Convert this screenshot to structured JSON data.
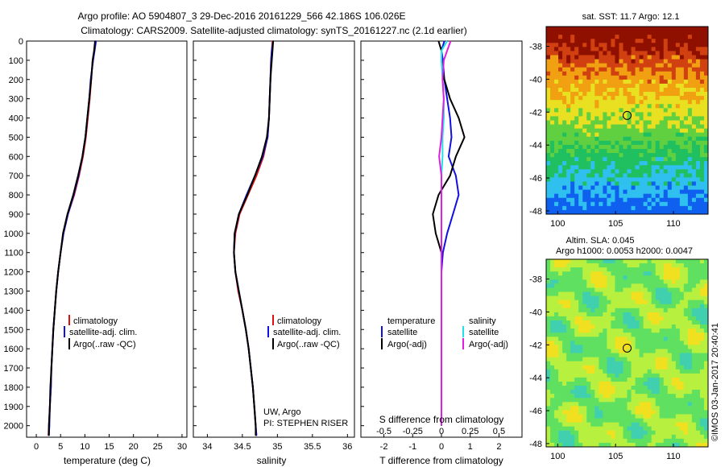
{
  "header": {
    "line1": "Argo profile: AO 5904807_3 29-Dec-2016 20161229_566 42.186S 106.026E",
    "line2": "Climatology: CARS2009. Satellite-adjusted climatology: synTS_20161227.nc (2.1d earlier)"
  },
  "colors": {
    "climatology": "#e01010",
    "satellite": "#1010e0",
    "argo": "#000000",
    "salinity_sat": "#20e0e8",
    "salinity_argo": "#e020e0"
  },
  "depth_ticks": [
    "0",
    "100",
    "200",
    "300",
    "400",
    "500",
    "600",
    "700",
    "800",
    "900",
    "1000",
    "1100",
    "1200",
    "1300",
    "1400",
    "1500",
    "1600",
    "1700",
    "1800",
    "1900",
    "2000"
  ],
  "temp_panel": {
    "xlabel": "temperature (deg C)",
    "xticks": [
      "0",
      "5",
      "10",
      "15",
      "20",
      "25",
      "30"
    ],
    "legend": [
      "climatology",
      "satellite-adj. clim.",
      "Argo(..raw -QC)"
    ]
  },
  "sal_panel": {
    "xlabel": "salinity",
    "xticks": [
      "34",
      "34.5",
      "35",
      "35.5",
      "36"
    ],
    "legend": [
      "climatology",
      "satellite-adj. clim.",
      "Argo(..raw -QC)"
    ],
    "note1": "UW, Argo",
    "note2": "PI: STEPHEN RISER"
  },
  "diff_panel": {
    "xlabel": "T difference from climatology",
    "top_label": "S difference from climatology",
    "xticks_T": [
      "-2",
      "-1",
      "0",
      "1",
      "2"
    ],
    "xticks_S": [
      "-0.5",
      "-0.25",
      "0",
      "0.25",
      "0.5"
    ],
    "legend_t_head": "temperature",
    "legend_s_head": "salinity",
    "legend_t": [
      "satellite",
      "Argo(-adj)"
    ],
    "legend_s": [
      "satellite",
      "Argo(-adj)"
    ]
  },
  "map_sst": {
    "title": "sat. SST: 11.7 Argo: 12.1",
    "yticks": [
      "-38",
      "-40",
      "-42",
      "-44",
      "-46",
      "-48"
    ],
    "xticks": [
      "100",
      "105",
      "110"
    ]
  },
  "map_sla": {
    "title1": "Altim. SLA: 0.045",
    "title2": "Argo h1000: 0.0053 h2000: 0.0047",
    "yticks": [
      "-38",
      "-40",
      "-42",
      "-44",
      "-46",
      "-48"
    ],
    "xticks": [
      "100",
      "105",
      "110"
    ],
    "side_label": "©IMOS 03-Jan-2017 20:40:41"
  },
  "chart_data": [
    {
      "type": "line",
      "title": "",
      "xlabel": "temperature (deg C)",
      "ylabel": "",
      "xlim": [
        -2,
        31
      ],
      "ylim": [
        2060,
        0
      ],
      "depth": [
        0,
        50,
        100,
        200,
        300,
        400,
        500,
        600,
        700,
        800,
        900,
        1000,
        1100,
        1200,
        1300,
        1400,
        1500,
        1600,
        1700,
        1800,
        1900,
        2000,
        2050
      ],
      "series": [
        {
          "name": "climatology",
          "values": [
            12.2,
            12.0,
            11.6,
            11.3,
            11.0,
            10.6,
            10.2,
            9.6,
            8.8,
            7.8,
            6.5,
            5.6,
            5.0,
            4.5,
            4.1,
            3.8,
            3.5,
            3.3,
            3.1,
            3.0,
            2.8,
            2.6,
            2.5
          ]
        },
        {
          "name": "satellite-adj. clim.",
          "values": [
            12.3,
            12.0,
            11.7,
            11.2,
            10.9,
            10.5,
            10.1,
            9.5,
            8.7,
            7.7,
            6.5,
            5.6,
            5.0,
            4.5,
            4.1,
            3.8,
            3.5,
            3.3,
            3.1,
            3.0,
            2.8,
            2.7,
            2.6
          ]
        },
        {
          "name": "Argo(..raw -QC)",
          "values": [
            12.1,
            11.9,
            11.6,
            11.3,
            10.9,
            10.5,
            10.1,
            9.5,
            8.6,
            7.6,
            6.4,
            5.5,
            5.0,
            4.5,
            4.1,
            3.8,
            3.5,
            3.3,
            3.1,
            2.9,
            2.8,
            2.6,
            2.6
          ]
        }
      ]
    },
    {
      "type": "line",
      "title": "",
      "xlabel": "salinity",
      "ylabel": "",
      "xlim": [
        33.8,
        36.1
      ],
      "ylim": [
        2060,
        0
      ],
      "depth": [
        0,
        50,
        100,
        200,
        300,
        400,
        500,
        600,
        700,
        800,
        900,
        1000,
        1100,
        1200,
        1300,
        1400,
        1500,
        1600,
        1700,
        1800,
        1900,
        2000,
        2050
      ],
      "series": [
        {
          "name": "climatology",
          "values": [
            34.93,
            34.92,
            34.91,
            34.9,
            34.89,
            34.88,
            34.86,
            34.8,
            34.7,
            34.58,
            34.46,
            34.4,
            34.38,
            34.4,
            34.44,
            34.5,
            34.55,
            34.59,
            34.62,
            34.65,
            34.67,
            34.69,
            34.7
          ]
        },
        {
          "name": "satellite-adj. clim.",
          "values": [
            34.94,
            34.92,
            34.91,
            34.9,
            34.89,
            34.88,
            34.86,
            34.79,
            34.68,
            34.56,
            34.45,
            34.39,
            34.38,
            34.4,
            34.45,
            34.5,
            34.55,
            34.59,
            34.62,
            34.65,
            34.67,
            34.69,
            34.7
          ]
        },
        {
          "name": "Argo(..raw -QC)",
          "values": [
            34.94,
            34.93,
            34.92,
            34.9,
            34.89,
            34.88,
            34.85,
            34.78,
            34.68,
            34.57,
            34.45,
            34.39,
            34.38,
            34.4,
            34.45,
            34.5,
            34.55,
            34.59,
            34.62,
            34.65,
            34.67,
            34.69,
            34.69
          ]
        }
      ]
    },
    {
      "type": "line",
      "title": "",
      "xlabel": "T difference from climatology",
      "ylabel": "",
      "xlim": [
        -2.8,
        2.8
      ],
      "ylim": [
        2060,
        0
      ],
      "depth": [
        0,
        50,
        100,
        200,
        300,
        400,
        500,
        600,
        700,
        800,
        900,
        1000,
        1100,
        1200,
        1300,
        1400,
        1500,
        1600,
        1700,
        1800,
        1900,
        2000
      ],
      "series": [
        {
          "name": "temperature satellite",
          "values": [
            0.1,
            0.0,
            0.05,
            0.1,
            0.2,
            0.3,
            0.35,
            0.25,
            0.5,
            0.6,
            0.4,
            0.2,
            0.05,
            0.0,
            0.0,
            0.0,
            0.0,
            0.0,
            0.0,
            0.0,
            0.0,
            0.0
          ]
        },
        {
          "name": "temperature Argo(-adj)",
          "values": [
            -0.1,
            0.0,
            0.0,
            0.1,
            0.3,
            0.6,
            0.8,
            0.5,
            0.3,
            -0.1,
            -0.3,
            -0.2,
            0.0,
            0.0,
            0.0,
            0.0,
            0.0,
            0.0,
            0.0,
            0.0,
            0.0,
            0.0
          ]
        },
        {
          "name": "salinity satellite",
          "values": [
            0.05,
            0.0,
            0.0,
            0.01,
            0.02,
            0.02,
            0.01,
            0.01,
            0.0,
            0.0,
            0.0,
            0.0,
            0.0,
            0.0,
            0.0,
            0.0,
            0.0,
            0.0,
            0.0,
            0.0,
            0.0,
            0.0
          ]
        },
        {
          "name": "salinity Argo(-adj)",
          "values": [
            0.08,
            0.05,
            0.02,
            0.01,
            0.02,
            0.01,
            0.0,
            -0.02,
            0.0,
            0.0,
            0.0,
            0.0,
            0.0,
            0.0,
            0.0,
            0.0,
            0.0,
            0.0,
            0.0,
            0.0,
            0.0,
            0.0
          ]
        }
      ]
    },
    {
      "type": "heatmap",
      "title": "sat. SST: 11.7 Argo: 12.1",
      "xlim": [
        99,
        113
      ],
      "ylim": [
        -48.2,
        -36.8
      ],
      "argo_position": [
        106.0,
        -42.2
      ]
    },
    {
      "type": "heatmap",
      "title": "Altim. SLA: 0.045",
      "xlim": [
        99,
        113
      ],
      "ylim": [
        -48.2,
        -36.8
      ],
      "argo_position": [
        106.0,
        -42.2
      ]
    }
  ]
}
